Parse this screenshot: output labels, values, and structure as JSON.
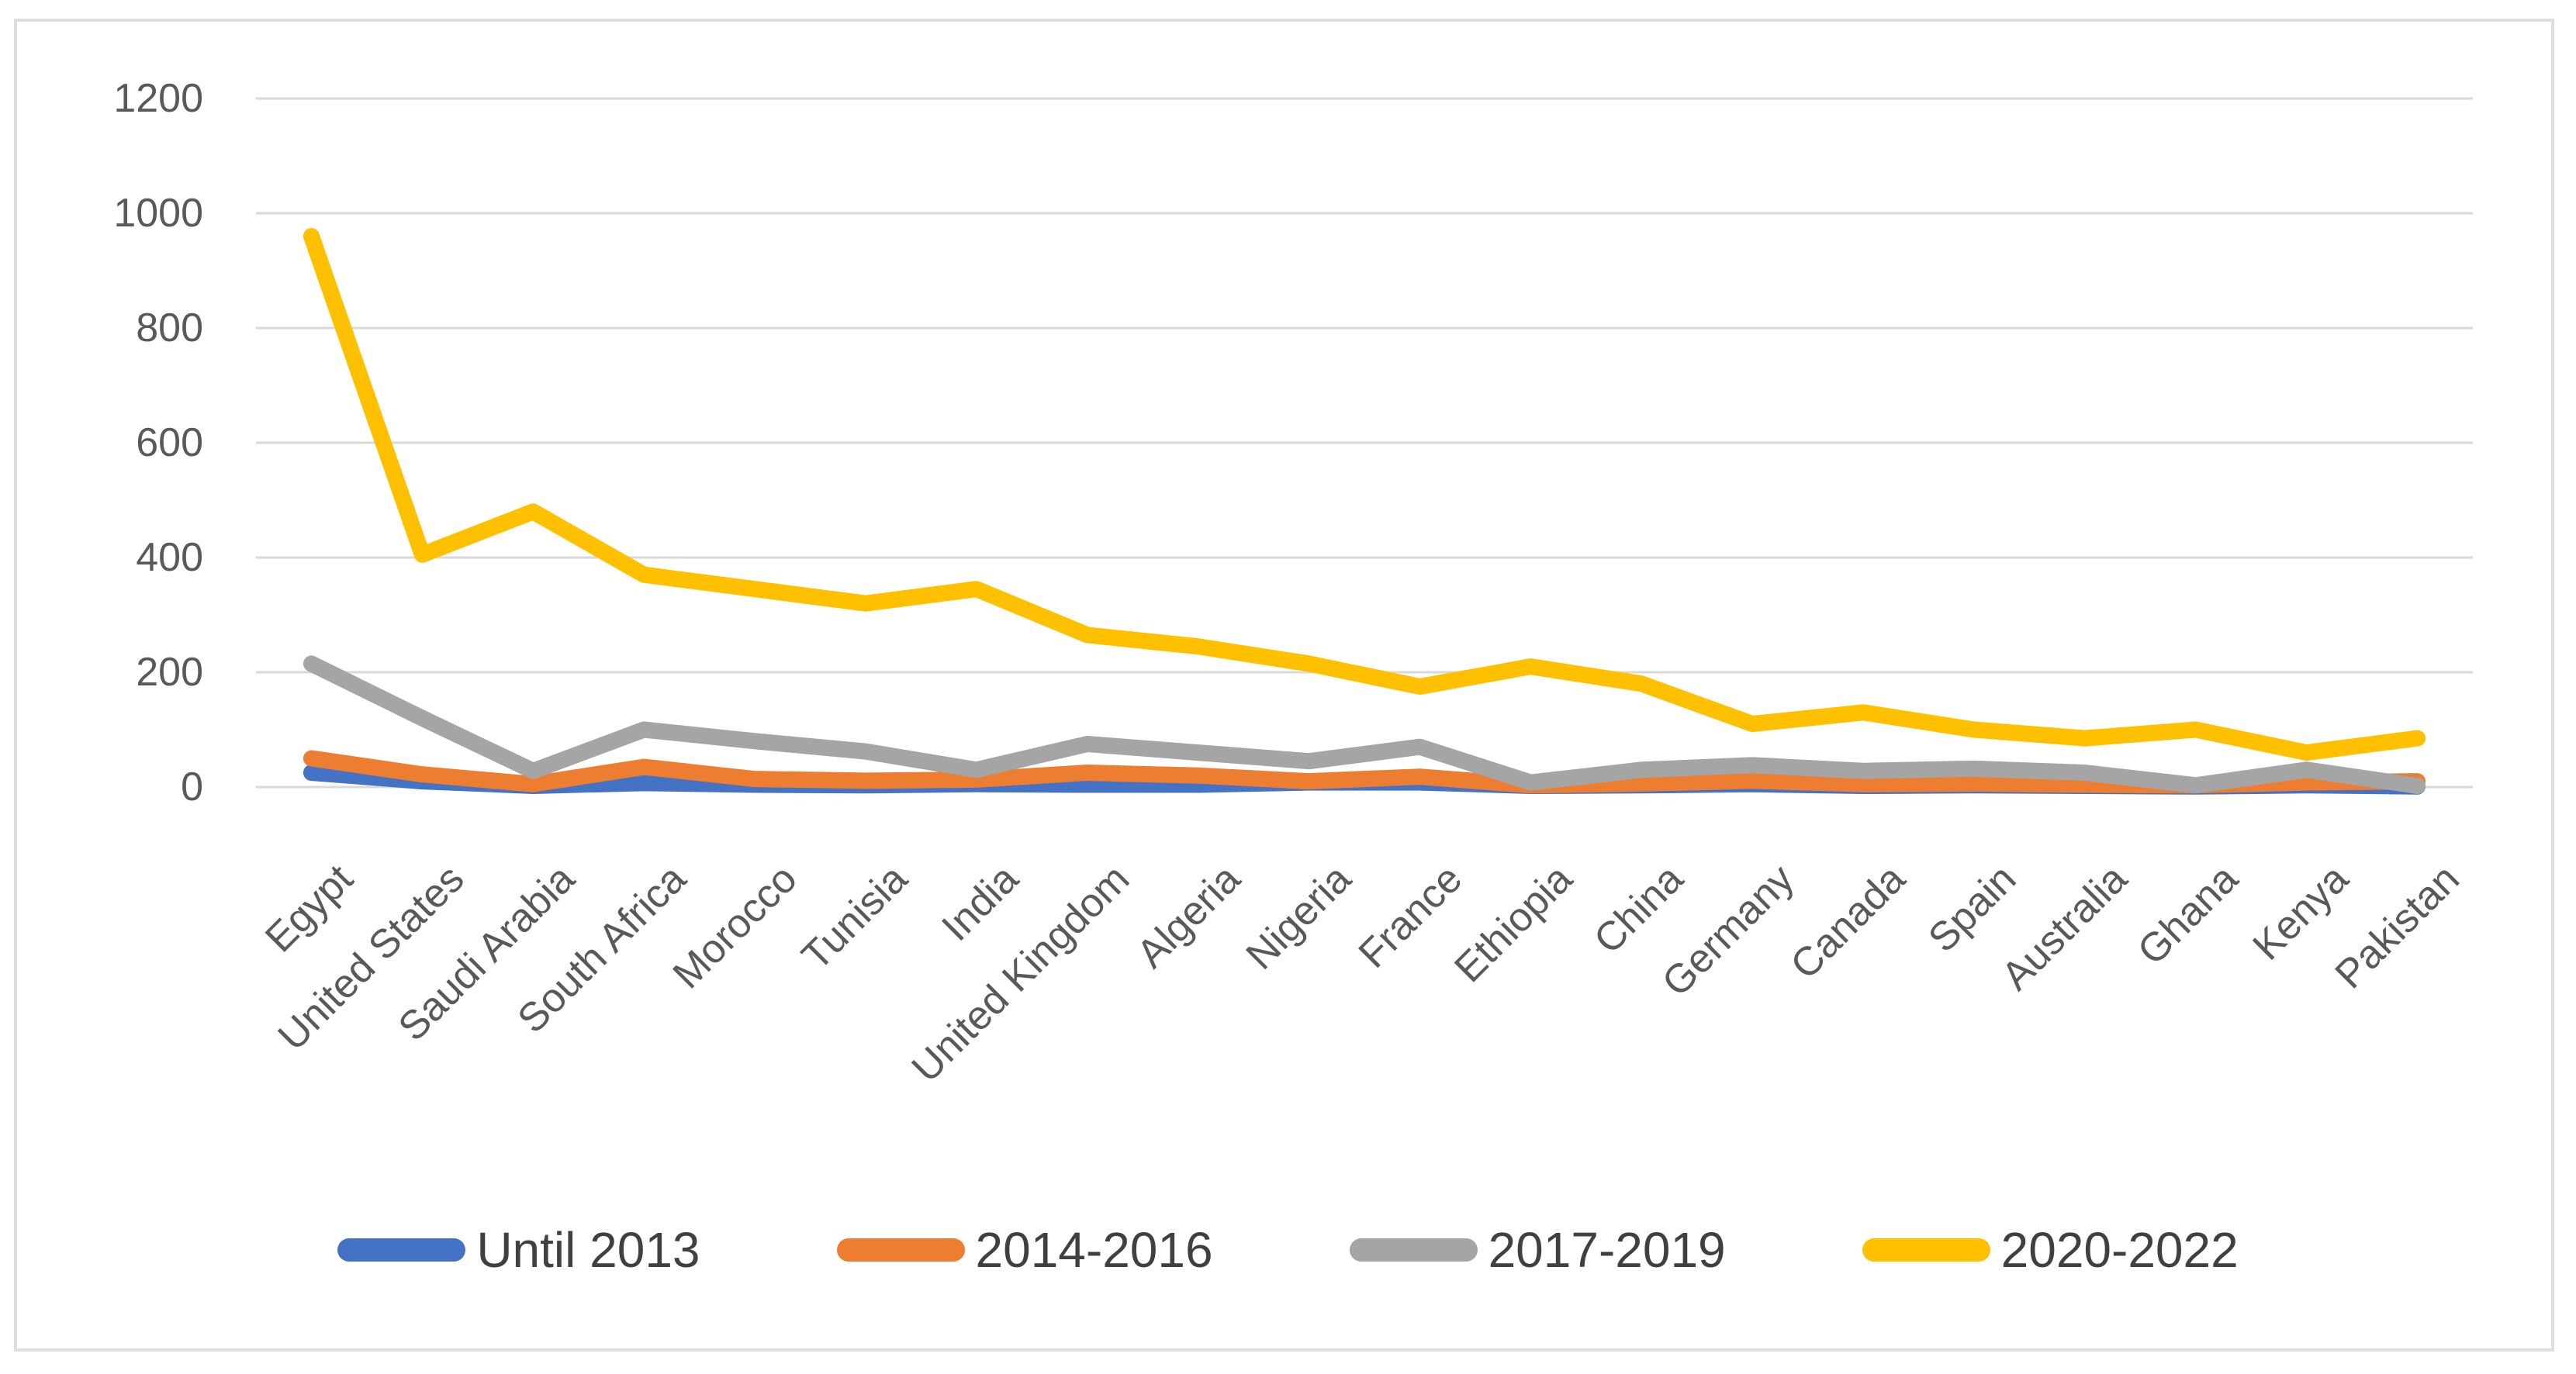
{
  "chart_data": {
    "type": "line",
    "title": "",
    "xlabel": "",
    "ylabel": "",
    "grid": true,
    "legend_position": "bottom",
    "categories": [
      "Egypt",
      "United States",
      "Saudi Arabia",
      "South Africa",
      "Morocco",
      "Tunisia",
      "India",
      "United Kingdom",
      "Algeria",
      "Nigeria",
      "France",
      "Ethiopia",
      "China",
      "Germany",
      "Canada",
      "Spain",
      "Australia",
      "Ghana",
      "Kenya",
      "Pakistan"
    ],
    "series": [
      {
        "name": "Until 2013",
        "color": "#4472C4",
        "values": [
          25,
          10,
          2,
          7,
          4,
          3,
          5,
          4,
          4,
          8,
          8,
          2,
          3,
          5,
          2,
          3,
          2,
          1,
          3,
          1
        ]
      },
      {
        "name": "2014-2016",
        "color": "#ED7D31",
        "values": [
          50,
          22,
          5,
          35,
          14,
          11,
          13,
          25,
          20,
          10,
          18,
          3,
          6,
          11,
          5,
          6,
          4,
          3,
          8,
          10
        ]
      },
      {
        "name": "2017-2019",
        "color": "#A5A5A5",
        "values": [
          215,
          120,
          28,
          100,
          80,
          62,
          30,
          75,
          60,
          45,
          70,
          8,
          30,
          38,
          28,
          32,
          25,
          3,
          30,
          2
        ]
      },
      {
        "name": "2020-2022",
        "color": "#FFC000",
        "values": [
          960,
          405,
          480,
          370,
          345,
          320,
          345,
          265,
          245,
          215,
          175,
          210,
          180,
          110,
          130,
          100,
          85,
          100,
          60,
          85
        ]
      }
    ],
    "y_axis": {
      "min": 0,
      "max": 1200,
      "step": 200,
      "tick_labels": [
        "0",
        "200",
        "400",
        "600",
        "800",
        "1000",
        "1200"
      ]
    }
  },
  "colors": {
    "background": "#FFFFFF",
    "gridline": "#D9D9D9",
    "axis_text": "#595959",
    "legend_text": "#404040",
    "chart_border": "#DEDEDE"
  }
}
